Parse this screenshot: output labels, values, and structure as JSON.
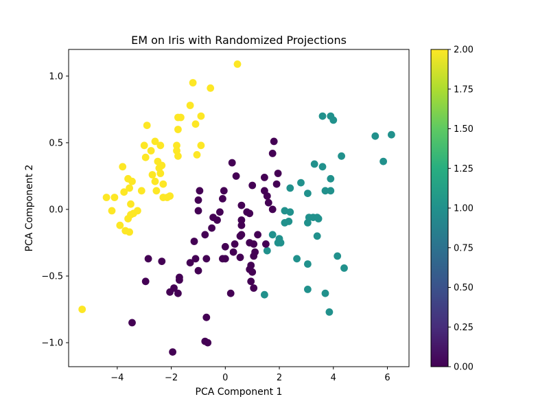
{
  "chart_data": {
    "type": "scatter",
    "title": "EM on Iris with Randomized Projections",
    "xlabel": "PCA Component 1",
    "ylabel": "PCA Component 2",
    "xlim": [
      -5.8,
      6.8
    ],
    "ylim": [
      -1.18,
      1.2
    ],
    "xticks": [
      -4,
      -2,
      0,
      2,
      4,
      6
    ],
    "yticks": [
      -1.0,
      -0.5,
      0.0,
      0.5,
      1.0
    ],
    "grid": false,
    "colormap": "viridis",
    "colorbar": {
      "min": 0.0,
      "max": 2.0,
      "ticks": [
        0.0,
        0.25,
        0.5,
        0.75,
        1.0,
        1.25,
        1.5,
        1.75,
        2.0
      ],
      "tick_labels": [
        "0.00",
        "0.25",
        "0.50",
        "0.75",
        "1.00",
        "1.25",
        "1.50",
        "1.75",
        "2.00"
      ]
    },
    "class_colors": [
      "#440154",
      "#21918c",
      "#fde725"
    ],
    "points": [
      [
        -4.4,
        0.09,
        2
      ],
      [
        -4.1,
        0.09,
        2
      ],
      [
        -4.2,
        -0.01,
        2
      ],
      [
        -3.8,
        0.32,
        2
      ],
      [
        -3.75,
        0.13,
        2
      ],
      [
        -3.6,
        0.23,
        2
      ],
      [
        -3.45,
        0.21,
        2
      ],
      [
        -3.55,
        0.16,
        2
      ],
      [
        -3.9,
        -0.12,
        2
      ],
      [
        -3.5,
        -0.04,
        2
      ],
      [
        -3.6,
        -0.07,
        2
      ],
      [
        -3.4,
        -0.03,
        2
      ],
      [
        -3.25,
        -0.01,
        2
      ],
      [
        -3.5,
        0.04,
        2
      ],
      [
        -3.7,
        -0.16,
        2
      ],
      [
        -3.55,
        -0.17,
        2
      ],
      [
        -3.1,
        0.14,
        2
      ],
      [
        -3.0,
        0.48,
        2
      ],
      [
        -2.9,
        0.63,
        2
      ],
      [
        -2.75,
        0.44,
        2
      ],
      [
        -2.6,
        0.51,
        2
      ],
      [
        -2.5,
        0.36,
        2
      ],
      [
        -2.4,
        0.48,
        2
      ],
      [
        -2.95,
        0.39,
        2
      ],
      [
        -2.7,
        0.26,
        2
      ],
      [
        -2.6,
        0.21,
        2
      ],
      [
        -2.55,
        0.14,
        2
      ],
      [
        -2.45,
        0.31,
        2
      ],
      [
        -2.35,
        0.33,
        2
      ],
      [
        -2.4,
        0.27,
        2
      ],
      [
        -2.3,
        0.19,
        2
      ],
      [
        -2.3,
        0.09,
        2
      ],
      [
        -2.15,
        0.09,
        2
      ],
      [
        -2.05,
        0.1,
        2
      ],
      [
        -1.8,
        0.44,
        2
      ],
      [
        -1.8,
        0.48,
        2
      ],
      [
        -1.75,
        0.4,
        2
      ],
      [
        -1.75,
        0.69,
        2
      ],
      [
        -1.65,
        0.69,
        2
      ],
      [
        -1.75,
        0.6,
        2
      ],
      [
        -1.3,
        0.78,
        2
      ],
      [
        -1.1,
        0.64,
        2
      ],
      [
        -1.05,
        0.41,
        2
      ],
      [
        -0.9,
        0.48,
        2
      ],
      [
        -0.9,
        0.7,
        2
      ],
      [
        -1.2,
        0.95,
        2
      ],
      [
        -0.55,
        0.91,
        2
      ],
      [
        0.45,
        1.09,
        2
      ],
      [
        -5.3,
        -0.75,
        2
      ],
      [
        3.6,
        0.7,
        1
      ],
      [
        3.9,
        0.7,
        1
      ],
      [
        4.0,
        0.67,
        1
      ],
      [
        5.55,
        0.55,
        1
      ],
      [
        6.15,
        0.56,
        1
      ],
      [
        5.85,
        0.36,
        1
      ],
      [
        4.3,
        0.4,
        1
      ],
      [
        3.3,
        0.34,
        1
      ],
      [
        3.6,
        0.32,
        1
      ],
      [
        3.9,
        0.23,
        1
      ],
      [
        3.9,
        0.14,
        1
      ],
      [
        3.7,
        0.14,
        1
      ],
      [
        3.05,
        0.12,
        1
      ],
      [
        2.8,
        0.2,
        1
      ],
      [
        2.4,
        0.16,
        1
      ],
      [
        2.2,
        -0.01,
        1
      ],
      [
        2.4,
        -0.02,
        1
      ],
      [
        2.35,
        -0.09,
        1
      ],
      [
        2.2,
        -0.1,
        1
      ],
      [
        3.1,
        -0.06,
        1
      ],
      [
        3.25,
        -0.06,
        1
      ],
      [
        3.4,
        -0.06,
        1
      ],
      [
        3.45,
        -0.07,
        1
      ],
      [
        3.05,
        -0.1,
        1
      ],
      [
        1.75,
        -0.19,
        1
      ],
      [
        2.0,
        -0.22,
        1
      ],
      [
        2.05,
        -0.25,
        1
      ],
      [
        1.95,
        -0.25,
        1
      ],
      [
        1.55,
        -0.31,
        1
      ],
      [
        3.4,
        -0.2,
        1
      ],
      [
        2.65,
        -0.37,
        1
      ],
      [
        3.05,
        -0.41,
        1
      ],
      [
        4.15,
        -0.35,
        1
      ],
      [
        4.4,
        -0.44,
        1
      ],
      [
        3.05,
        -0.6,
        1
      ],
      [
        3.7,
        -0.63,
        1
      ],
      [
        3.85,
        -0.77,
        1
      ],
      [
        1.45,
        -0.64,
        1
      ],
      [
        0.25,
        0.35,
        0
      ],
      [
        0.4,
        0.25,
        0
      ],
      [
        -0.05,
        0.14,
        0
      ],
      [
        -0.95,
        0.14,
        0
      ],
      [
        -0.1,
        0.08,
        0
      ],
      [
        -1.0,
        0.07,
        0
      ],
      [
        -1.0,
        -0.01,
        0
      ],
      [
        -0.2,
        -0.02,
        0
      ],
      [
        -0.45,
        -0.06,
        0
      ],
      [
        -0.3,
        -0.08,
        0
      ],
      [
        -0.5,
        -0.14,
        0
      ],
      [
        -0.75,
        -0.19,
        0
      ],
      [
        -1.15,
        -0.24,
        0
      ],
      [
        0.0,
        -0.28,
        0
      ],
      [
        0.35,
        -0.26,
        0
      ],
      [
        0.3,
        -0.32,
        0
      ],
      [
        0.55,
        -0.2,
        0
      ],
      [
        0.6,
        -0.19,
        0
      ],
      [
        0.6,
        -0.08,
        0
      ],
      [
        0.6,
        -0.12,
        0
      ],
      [
        0.6,
        0.03,
        0
      ],
      [
        0.8,
        -0.02,
        0
      ],
      [
        0.9,
        -0.03,
        0
      ],
      [
        1.0,
        0.18,
        0
      ],
      [
        1.45,
        0.24,
        0
      ],
      [
        1.45,
        0.14,
        0
      ],
      [
        1.55,
        0.1,
        0
      ],
      [
        1.6,
        0.05,
        0
      ],
      [
        1.75,
        0.0,
        0
      ],
      [
        1.9,
        0.19,
        0
      ],
      [
        1.95,
        0.27,
        0
      ],
      [
        1.75,
        0.42,
        0
      ],
      [
        1.8,
        0.51,
        0
      ],
      [
        0.9,
        -0.25,
        0
      ],
      [
        1.05,
        -0.26,
        0
      ],
      [
        1.2,
        -0.19,
        0
      ],
      [
        1.5,
        -0.26,
        0
      ],
      [
        1.1,
        -0.32,
        0
      ],
      [
        1.05,
        -0.35,
        0
      ],
      [
        0.95,
        -0.42,
        0
      ],
      [
        0.55,
        -0.36,
        0
      ],
      [
        0.0,
        -0.37,
        0
      ],
      [
        -0.1,
        -0.37,
        0
      ],
      [
        -0.7,
        -0.37,
        0
      ],
      [
        -1.1,
        -0.37,
        0
      ],
      [
        -1.3,
        -0.4,
        0
      ],
      [
        -1.0,
        -0.46,
        0
      ],
      [
        0.9,
        -0.45,
        0
      ],
      [
        1.0,
        -0.47,
        0
      ],
      [
        0.95,
        -0.54,
        0
      ],
      [
        1.05,
        -0.59,
        0
      ],
      [
        0.2,
        -0.63,
        0
      ],
      [
        -1.7,
        -0.51,
        0
      ],
      [
        -1.7,
        -0.53,
        0
      ],
      [
        -1.9,
        -0.59,
        0
      ],
      [
        -2.05,
        -0.62,
        0
      ],
      [
        -1.75,
        -0.63,
        0
      ],
      [
        -2.35,
        -0.39,
        0
      ],
      [
        -2.85,
        -0.37,
        0
      ],
      [
        -2.95,
        -0.54,
        0
      ],
      [
        -3.45,
        -0.85,
        0
      ],
      [
        -0.7,
        -0.81,
        0
      ],
      [
        -0.75,
        -0.99,
        0
      ],
      [
        -0.65,
        -1.0,
        0
      ],
      [
        -1.95,
        -1.07,
        0
      ]
    ]
  }
}
